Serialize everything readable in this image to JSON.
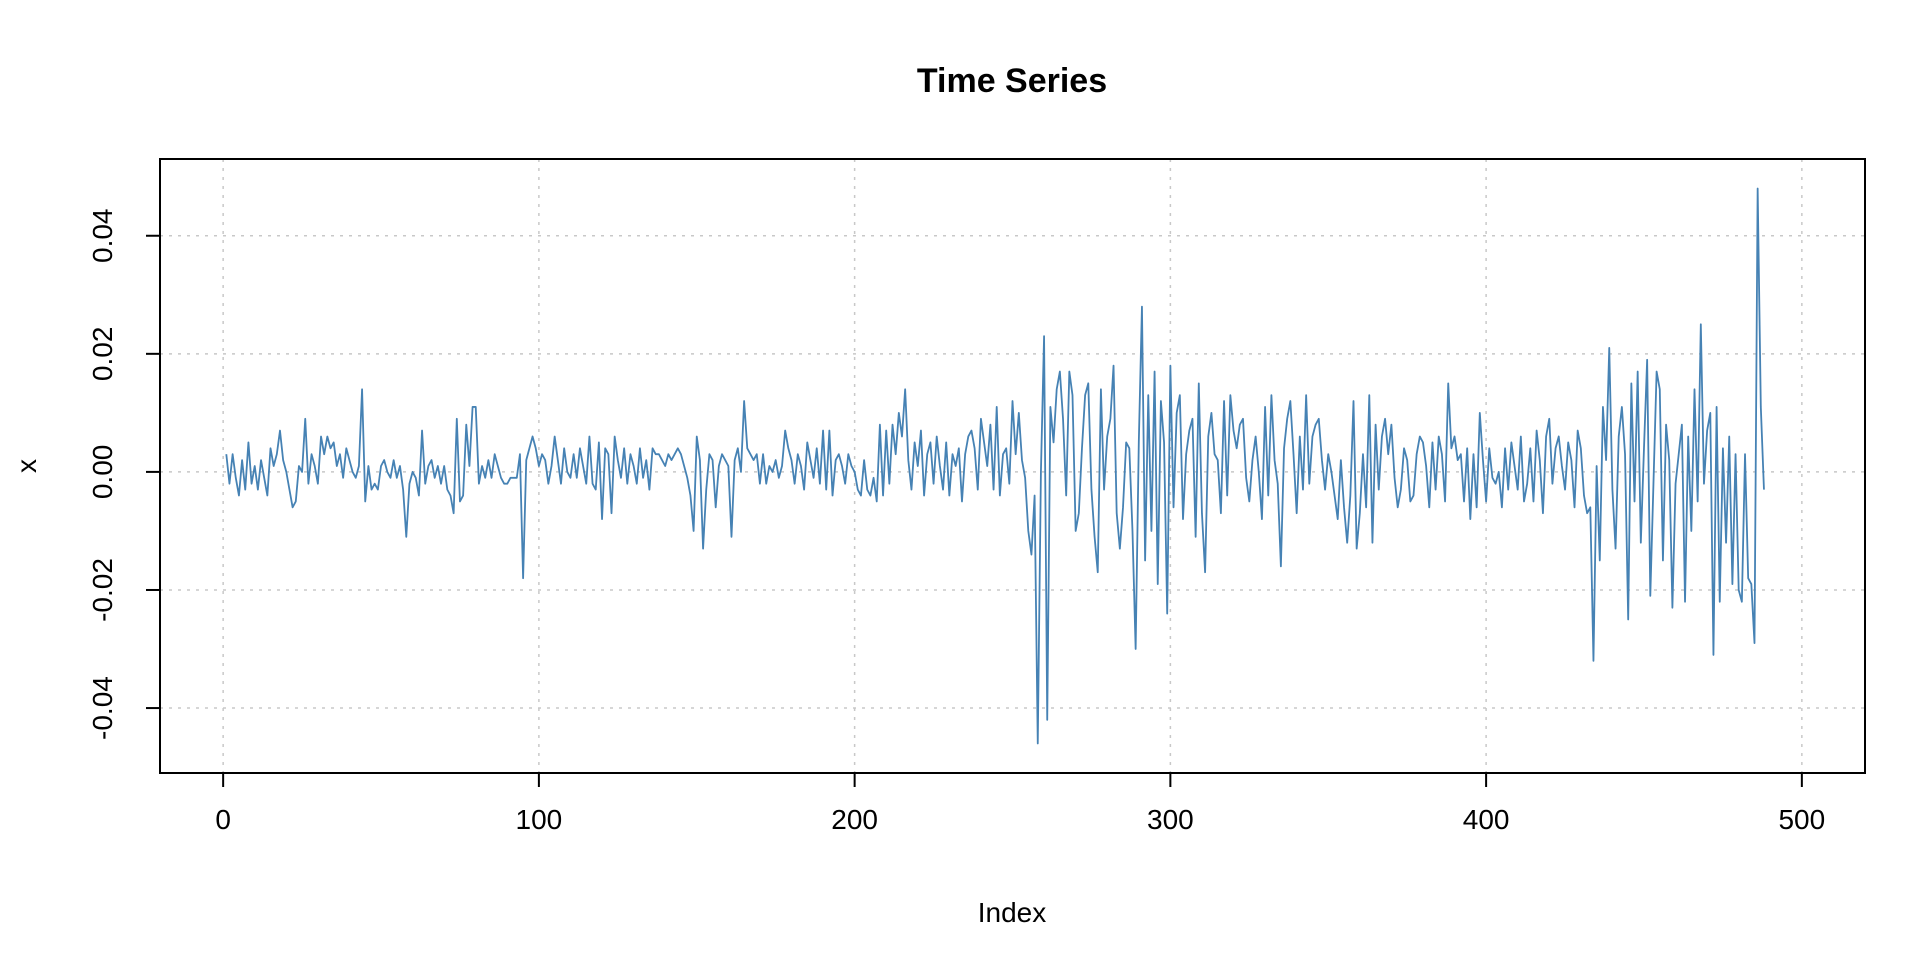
{
  "chart_data": {
    "type": "line",
    "title": "Time Series",
    "xlabel": "Index",
    "ylabel": "x",
    "xlim": [
      -20,
      520
    ],
    "ylim": [
      -0.051,
      0.053
    ],
    "xticks": [
      0,
      100,
      200,
      300,
      400,
      500
    ],
    "xtick_labels": [
      "0",
      "100",
      "200",
      "300",
      "400",
      "500"
    ],
    "yticks": [
      -0.04,
      -0.02,
      0.0,
      0.02,
      0.04
    ],
    "ytick_labels": [
      "-0.04",
      "-0.02",
      "0.00",
      "0.02",
      "0.04"
    ],
    "grid": true,
    "series": [
      {
        "color": "#4682b4",
        "x_start": 1,
        "x_step": 1,
        "values": [
          0.003,
          -0.002,
          0.003,
          -0.001,
          -0.004,
          0.002,
          -0.003,
          0.005,
          -0.002,
          0.001,
          -0.003,
          0.002,
          -0.001,
          -0.004,
          0.004,
          0.001,
          0.003,
          0.007,
          0.002,
          0.0,
          -0.003,
          -0.006,
          -0.005,
          0.001,
          0.0,
          0.009,
          -0.002,
          0.003,
          0.001,
          -0.002,
          0.006,
          0.003,
          0.006,
          0.004,
          0.005,
          0.001,
          0.003,
          -0.001,
          0.004,
          0.002,
          0.0,
          -0.001,
          0.001,
          0.014,
          -0.005,
          0.001,
          -0.003,
          -0.002,
          -0.003,
          0.001,
          0.002,
          0.0,
          -0.001,
          0.002,
          -0.001,
          0.001,
          -0.003,
          -0.011,
          -0.002,
          0.0,
          -0.001,
          -0.004,
          0.007,
          -0.002,
          0.001,
          0.002,
          -0.001,
          0.001,
          -0.002,
          0.001,
          -0.003,
          -0.004,
          -0.007,
          0.009,
          -0.005,
          -0.004,
          0.008,
          0.001,
          0.011,
          0.011,
          -0.002,
          0.001,
          -0.001,
          0.002,
          -0.001,
          0.003,
          0.001,
          -0.001,
          -0.002,
          -0.002,
          -0.001,
          -0.001,
          -0.001,
          0.003,
          -0.018,
          0.002,
          0.004,
          0.006,
          0.004,
          0.001,
          0.003,
          0.002,
          -0.002,
          0.001,
          0.006,
          0.002,
          -0.002,
          0.004,
          0.0,
          -0.001,
          0.003,
          -0.001,
          0.004,
          0.001,
          -0.002,
          0.006,
          -0.002,
          -0.003,
          0.005,
          -0.008,
          0.004,
          0.003,
          -0.007,
          0.006,
          0.002,
          -0.001,
          0.004,
          -0.002,
          0.003,
          0.001,
          -0.002,
          0.004,
          -0.001,
          0.002,
          -0.003,
          0.004,
          0.003,
          0.003,
          0.002,
          0.001,
          0.003,
          0.002,
          0.003,
          0.004,
          0.003,
          0.001,
          -0.001,
          -0.004,
          -0.01,
          0.006,
          0.002,
          -0.013,
          -0.003,
          0.003,
          0.002,
          -0.006,
          0.001,
          0.003,
          0.002,
          0.001,
          -0.011,
          0.002,
          0.004,
          0.0,
          0.012,
          0.004,
          0.003,
          0.002,
          0.003,
          -0.002,
          0.003,
          -0.002,
          0.001,
          0.0,
          0.002,
          -0.001,
          0.001,
          0.007,
          0.004,
          0.002,
          -0.002,
          0.003,
          0.001,
          -0.003,
          0.005,
          0.002,
          -0.001,
          0.004,
          -0.002,
          0.007,
          -0.003,
          0.007,
          -0.004,
          0.002,
          0.003,
          0.001,
          -0.002,
          0.003,
          0.001,
          0.0,
          -0.003,
          -0.004,
          0.002,
          -0.003,
          -0.004,
          -0.001,
          -0.005,
          0.008,
          -0.004,
          0.007,
          -0.002,
          0.008,
          0.003,
          0.01,
          0.006,
          0.014,
          0.002,
          -0.003,
          0.005,
          0.001,
          0.007,
          -0.004,
          0.003,
          0.005,
          -0.002,
          0.006,
          0.001,
          -0.003,
          0.005,
          -0.004,
          0.003,
          0.001,
          0.004,
          -0.005,
          0.003,
          0.006,
          0.007,
          0.004,
          -0.003,
          0.009,
          0.005,
          0.001,
          0.008,
          -0.003,
          0.011,
          -0.004,
          0.003,
          0.004,
          -0.002,
          0.012,
          0.003,
          0.01,
          0.002,
          -0.001,
          -0.01,
          -0.014,
          -0.004,
          -0.046,
          0.0,
          0.023,
          -0.042,
          0.011,
          0.005,
          0.014,
          0.017,
          0.009,
          -0.004,
          0.017,
          0.013,
          -0.01,
          -0.007,
          0.004,
          0.013,
          0.015,
          -0.003,
          -0.011,
          -0.017,
          0.014,
          -0.003,
          0.006,
          0.009,
          0.018,
          -0.007,
          -0.013,
          -0.006,
          0.005,
          0.004,
          -0.01,
          -0.03,
          0.005,
          0.028,
          -0.015,
          0.013,
          -0.01,
          0.017,
          -0.019,
          0.012,
          0.005,
          -0.024,
          0.018,
          -0.006,
          0.01,
          0.013,
          -0.008,
          0.003,
          0.007,
          0.009,
          -0.011,
          0.015,
          -0.007,
          -0.017,
          0.006,
          0.01,
          0.003,
          0.002,
          -0.007,
          0.012,
          -0.004,
          0.013,
          0.007,
          0.004,
          0.008,
          0.009,
          -0.001,
          -0.005,
          0.002,
          0.006,
          0.0,
          -0.008,
          0.011,
          -0.004,
          0.013,
          0.002,
          -0.002,
          -0.016,
          0.004,
          0.009,
          0.012,
          0.003,
          -0.007,
          0.006,
          -0.003,
          0.013,
          -0.002,
          0.006,
          0.008,
          0.009,
          0.002,
          -0.003,
          0.003,
          0.0,
          -0.004,
          -0.008,
          0.002,
          -0.006,
          -0.012,
          -0.004,
          0.012,
          -0.013,
          -0.007,
          0.003,
          -0.006,
          0.013,
          -0.012,
          0.008,
          -0.003,
          0.006,
          0.009,
          0.003,
          0.008,
          -0.001,
          -0.006,
          -0.003,
          0.004,
          0.002,
          -0.005,
          -0.004,
          0.003,
          0.006,
          0.005,
          0.001,
          -0.006,
          0.005,
          -0.003,
          0.006,
          0.003,
          -0.005,
          0.015,
          0.004,
          0.006,
          0.002,
          0.003,
          -0.005,
          0.004,
          -0.008,
          0.003,
          -0.006,
          0.01,
          0.002,
          -0.005,
          0.004,
          -0.001,
          -0.002,
          0.0,
          -0.006,
          0.004,
          -0.003,
          0.005,
          0.001,
          -0.003,
          0.006,
          -0.005,
          -0.002,
          0.004,
          -0.005,
          0.007,
          0.002,
          -0.007,
          0.006,
          0.009,
          -0.002,
          0.004,
          0.006,
          0.001,
          -0.003,
          0.005,
          0.002,
          -0.006,
          0.007,
          0.004,
          -0.004,
          -0.007,
          -0.006,
          -0.032,
          0.001,
          -0.015,
          0.011,
          0.002,
          0.021,
          -0.003,
          -0.013,
          0.006,
          0.011,
          0.003,
          -0.025,
          0.015,
          -0.005,
          0.017,
          -0.012,
          0.004,
          0.019,
          -0.021,
          -0.002,
          0.017,
          0.014,
          -0.015,
          0.008,
          0.002,
          -0.023,
          -0.002,
          0.003,
          0.008,
          -0.022,
          0.006,
          -0.01,
          0.014,
          -0.005,
          0.025,
          -0.002,
          0.007,
          0.01,
          -0.031,
          0.011,
          -0.022,
          0.004,
          -0.012,
          0.006,
          -0.019,
          0.003,
          -0.02,
          -0.022,
          0.003,
          -0.018,
          -0.019,
          -0.029,
          0.048,
          0.011,
          -0.003
        ]
      }
    ]
  }
}
